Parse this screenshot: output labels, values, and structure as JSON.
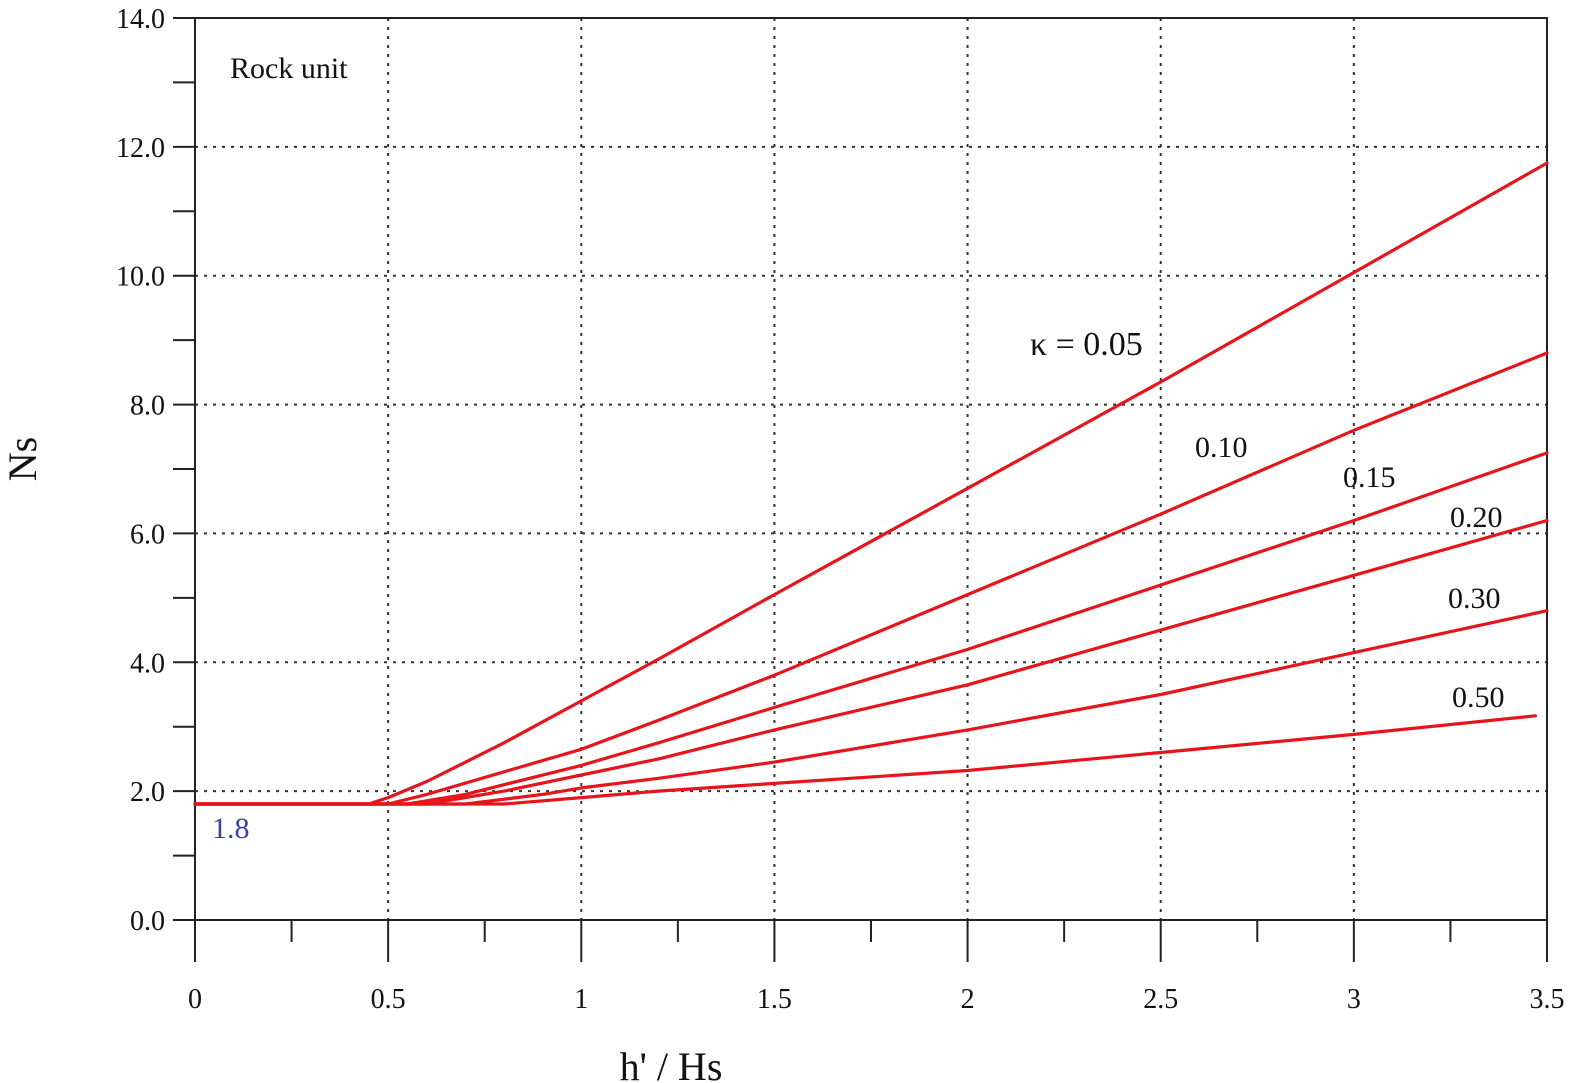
{
  "chart_data": {
    "type": "line",
    "title": "",
    "xlabel": "h' / Hs",
    "ylabel": "Ns",
    "xlim": [
      0,
      3.5
    ],
    "ylim": [
      0,
      14
    ],
    "grid": true,
    "x_ticks": [
      0,
      0.5,
      1,
      1.5,
      2,
      2.5,
      3,
      3.5
    ],
    "x_tick_labels": [
      "0",
      "0.5",
      "1",
      "1.5",
      "2",
      "2.5",
      "3",
      "3.5"
    ],
    "y_ticks": [
      0,
      2,
      4,
      6,
      8,
      10,
      12,
      14
    ],
    "y_tick_labels": [
      "0.0",
      "2.0",
      "4.0",
      "6.0",
      "8.0",
      "10.0",
      "12.0",
      "14.0"
    ],
    "line_color": "#e8141c",
    "series": [
      {
        "name": "κ = 0.05",
        "x": [
          0,
          0.45,
          0.5,
          0.6,
          0.8,
          1.0,
          1.2,
          1.5,
          2.0,
          2.5,
          3.0,
          3.5
        ],
        "y": [
          1.8,
          1.8,
          1.9,
          2.15,
          2.75,
          3.4,
          4.05,
          5.05,
          6.7,
          8.35,
          10.05,
          11.75
        ]
      },
      {
        "name": "0.10",
        "x": [
          0,
          0.5,
          0.6,
          0.8,
          1.0,
          1.2,
          1.5,
          2.0,
          2.5,
          3.0,
          3.5
        ],
        "y": [
          1.8,
          1.8,
          1.95,
          2.3,
          2.65,
          3.1,
          3.8,
          5.05,
          6.3,
          7.6,
          8.8
        ]
      },
      {
        "name": "0.15",
        "x": [
          0,
          0.55,
          0.7,
          0.8,
          1.0,
          1.2,
          1.5,
          2.0,
          2.5,
          3.0,
          3.5
        ],
        "y": [
          1.8,
          1.8,
          1.95,
          2.1,
          2.4,
          2.75,
          3.3,
          4.2,
          5.2,
          6.2,
          7.25
        ]
      },
      {
        "name": "0.20",
        "x": [
          0,
          0.6,
          0.8,
          1.0,
          1.2,
          1.5,
          2.0,
          2.5,
          3.0,
          3.5
        ],
        "y": [
          1.8,
          1.8,
          2.0,
          2.25,
          2.5,
          2.95,
          3.65,
          4.5,
          5.35,
          6.2
        ]
      },
      {
        "name": "0.30",
        "x": [
          0,
          0.7,
          0.9,
          1.0,
          1.2,
          1.5,
          2.0,
          2.5,
          3.0,
          3.5
        ],
        "y": [
          1.8,
          1.8,
          1.95,
          2.05,
          2.2,
          2.45,
          2.95,
          3.5,
          4.15,
          4.8
        ]
      },
      {
        "name": "0.50",
        "x": [
          0,
          0.8,
          1.0,
          1.2,
          1.5,
          2.0,
          2.5,
          3.0,
          3.47
        ],
        "y": [
          1.8,
          1.8,
          1.9,
          2.0,
          2.12,
          2.32,
          2.6,
          2.88,
          3.17
        ]
      }
    ],
    "annotations": {
      "box_label": "Rock unit",
      "base_value": "1.8",
      "base_value_color": "#3b3fa0"
    }
  }
}
